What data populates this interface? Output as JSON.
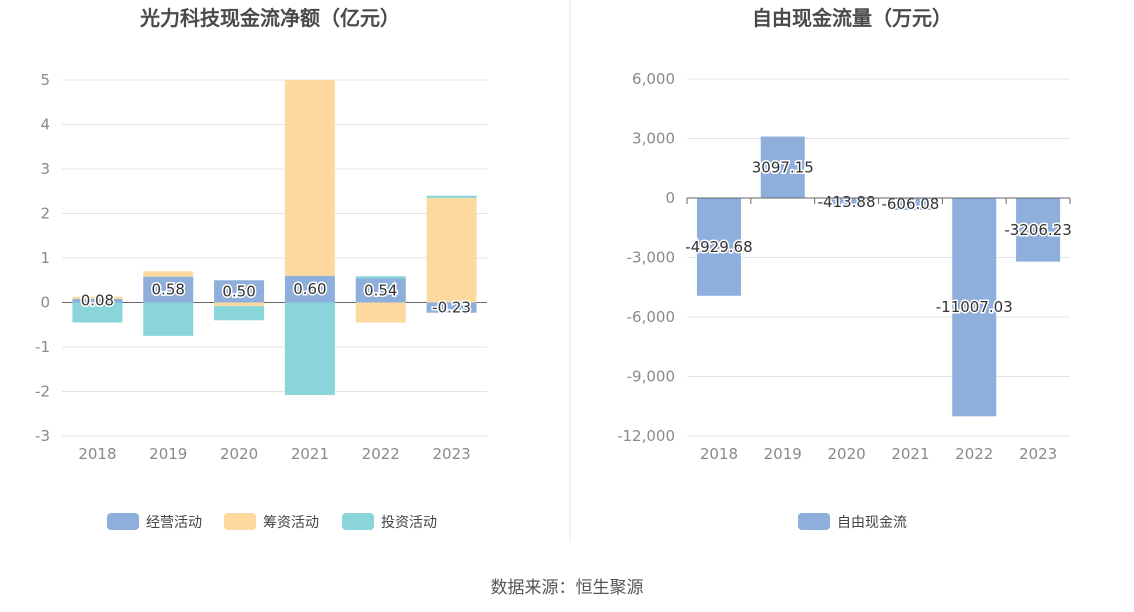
{
  "source_label": "数据来源：恒生聚源",
  "colors": {
    "operating": "#8eaedc",
    "financing": "#fdd9a0",
    "investing": "#8ad5da",
    "fcf": "#8eaedc",
    "grid": "#e1e4ea",
    "axis": "#999999",
    "divider": "#e9e9e9"
  },
  "chart_data": [
    {
      "type": "bar",
      "stacked": true,
      "title": "光力科技现金流净额（亿元）",
      "categories": [
        "2018",
        "2019",
        "2020",
        "2021",
        "2022",
        "2023"
      ],
      "ylim": [
        -3,
        5
      ],
      "yticks": [
        5,
        4,
        3,
        2,
        1,
        0,
        -1,
        -2,
        -3
      ],
      "ytick_labels": [
        "5",
        "4",
        "3",
        "2",
        "1",
        "0",
        "-1",
        "-2",
        "-3"
      ],
      "grid": true,
      "legend_position": "bottom",
      "series": [
        {
          "name": "经营活动",
          "values": [
            0.08,
            0.58,
            0.5,
            0.6,
            0.54,
            -0.23
          ],
          "labels": [
            "0.08",
            "0.58",
            "0.50",
            "0.60",
            "0.54",
            "-0.23"
          ]
        },
        {
          "name": "筹资活动",
          "values": [
            0.05,
            0.12,
            -0.08,
            4.4,
            -0.45,
            2.35
          ]
        },
        {
          "name": "投资活动",
          "values": [
            -0.45,
            -0.75,
            -0.32,
            -2.08,
            0.05,
            0.05
          ]
        }
      ]
    },
    {
      "type": "bar",
      "title": "自由现金流量（万元）",
      "categories": [
        "2018",
        "2019",
        "2020",
        "2021",
        "2022",
        "2023"
      ],
      "ylim": [
        -12000,
        6000
      ],
      "yticks": [
        6000,
        3000,
        0,
        -3000,
        -6000,
        -9000,
        -12000
      ],
      "ytick_labels": [
        "6,000",
        "3,000",
        "0",
        "-3,000",
        "-6,000",
        "-9,000",
        "-12,000"
      ],
      "grid": true,
      "legend_position": "bottom",
      "series": [
        {
          "name": "自由现金流",
          "values": [
            -4929.68,
            3097.15,
            -413.88,
            -606.08,
            -11007.03,
            -3206.23
          ],
          "labels": [
            "-4929.68",
            "3097.15",
            "-413.88",
            "-606.08",
            "-11007.03",
            "-3206.23"
          ]
        }
      ]
    }
  ]
}
